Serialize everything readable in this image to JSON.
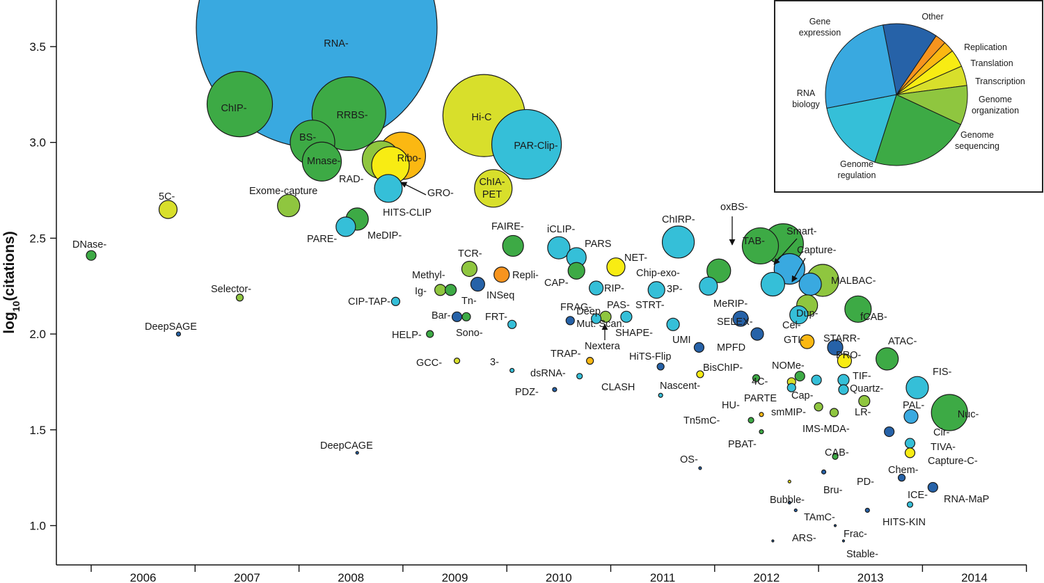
{
  "chart_data": {
    "type": "scatter",
    "ylabel": "log10(citations)",
    "xlim": [
      2005.5,
      2014.95
    ],
    "ylim": [
      0.8,
      3.73
    ],
    "x_ticks": [
      2006,
      2007,
      2008,
      2009,
      2010,
      2011,
      2012,
      2013,
      2014
    ],
    "y_ticks": [
      "1.0",
      "1.5",
      "2.0",
      "2.5",
      "3.0",
      "3.5"
    ],
    "colors": {
      "gene_expression": "#39a9e0",
      "rna_biology": "#35bfd8",
      "genome_regulation": "#3daa45",
      "genome_sequencing": "#8fc63f",
      "genome_organization": "#d8df2b",
      "transcription": "#f8ec13",
      "translation": "#fbb812",
      "replication": "#f7941e",
      "other": "#2662a8"
    },
    "points": [
      {
        "label": "DNase-",
        "x": 2005.5,
        "y": 2.41,
        "r": 7,
        "cat": "genome_regulation"
      },
      {
        "label": "DeepSAGE",
        "x": 2006.34,
        "y": 2.0,
        "r": 3,
        "cat": "other"
      },
      {
        "label": "5C-",
        "x": 2006.24,
        "y": 2.65,
        "r": 13,
        "cat": "genome_organization"
      },
      {
        "label": "Selector-",
        "x": 2006.93,
        "y": 2.19,
        "r": 5,
        "cat": "genome_sequencing"
      },
      {
        "label": "ChIP-",
        "x": 2006.93,
        "y": 3.2,
        "r": 47,
        "cat": "genome_regulation"
      },
      {
        "label": "RNA-",
        "x": 2007.67,
        "y": 3.6,
        "r": 173,
        "cat": "gene_expression"
      },
      {
        "label": "Exome-capture",
        "x": 2007.4,
        "y": 2.67,
        "r": 16,
        "cat": "genome_sequencing"
      },
      {
        "label": "BS-",
        "x": 2007.63,
        "y": 3.0,
        "r": 32,
        "cat": "genome_regulation"
      },
      {
        "label": "Mnase-",
        "x": 2007.72,
        "y": 2.9,
        "r": 28,
        "cat": "genome_regulation"
      },
      {
        "label": "RRBS-",
        "x": 2007.98,
        "y": 3.15,
        "r": 53,
        "cat": "genome_regulation"
      },
      {
        "label": "RAD-",
        "x": 2008.29,
        "y": 2.91,
        "r": 27,
        "cat": "genome_sequencing"
      },
      {
        "label": "GRO-",
        "x": 2008.38,
        "y": 2.88,
        "r": 27,
        "cat": "transcription"
      },
      {
        "label": "Ribo-",
        "x": 2008.49,
        "y": 2.93,
        "r": 34,
        "cat": "translation"
      },
      {
        "label": "HITS-CLIP",
        "x": 2008.36,
        "y": 2.76,
        "r": 20,
        "cat": "rna_biology"
      },
      {
        "label": "PARE-",
        "x": 2007.95,
        "y": 2.56,
        "r": 14,
        "cat": "rna_biology"
      },
      {
        "label": "MeDIP-",
        "x": 2008.06,
        "y": 2.6,
        "r": 16,
        "cat": "genome_regulation"
      },
      {
        "label": "Hi-C",
        "x": 2009.28,
        "y": 3.14,
        "r": 59,
        "cat": "genome_organization"
      },
      {
        "label": "PAR-Clip-",
        "x": 2009.69,
        "y": 2.99,
        "r": 50,
        "cat": "rna_biology"
      },
      {
        "label": "ChIA-PET",
        "x": 2009.37,
        "y": 2.76,
        "r": 27,
        "cat": "genome_organization"
      },
      {
        "label": "FAIRE-",
        "x": 2009.56,
        "y": 2.46,
        "r": 15,
        "cat": "genome_regulation"
      },
      {
        "label": "TCR-",
        "x": 2009.14,
        "y": 2.34,
        "r": 11,
        "cat": "genome_sequencing"
      },
      {
        "label": "Methyl-",
        "x": 2008.86,
        "y": 2.23,
        "r": 8,
        "cat": "genome_sequencing"
      },
      {
        "label": "Ig-",
        "x": 2008.96,
        "y": 2.23,
        "r": 8,
        "cat": "genome_regulation"
      },
      {
        "label": "Tn-",
        "x": 2009.22,
        "y": 2.26,
        "r": 10,
        "cat": "other"
      },
      {
        "label": "INSeq",
        "x": 2009.22,
        "y": 2.26,
        "r": 0,
        "cat": "other"
      },
      {
        "label": "Repli-",
        "x": 2009.45,
        "y": 2.31,
        "r": 11,
        "cat": "replication"
      },
      {
        "label": "CIP-TAP-",
        "x": 2008.43,
        "y": 2.17,
        "r": 6,
        "cat": "rna_biology"
      },
      {
        "label": "Bar-",
        "x": 2009.02,
        "y": 2.09,
        "r": 7,
        "cat": "other"
      },
      {
        "label": "Sono-",
        "x": 2009.11,
        "y": 2.09,
        "r": 6,
        "cat": "genome_regulation"
      },
      {
        "label": "HELP-",
        "x": 2008.76,
        "y": 2.0,
        "r": 5,
        "cat": "genome_regulation"
      },
      {
        "label": "FRT-",
        "x": 2009.55,
        "y": 2.05,
        "r": 6,
        "cat": "rna_biology"
      },
      {
        "label": "GCC-",
        "x": 2009.02,
        "y": 1.86,
        "r": 4,
        "cat": "genome_organization"
      },
      {
        "label": "3-",
        "x": 2009.55,
        "y": 1.81,
        "r": 3,
        "cat": "rna_biology"
      },
      {
        "label": "DeepCAGE",
        "x": 2008.06,
        "y": 1.38,
        "r": 2,
        "cat": "other"
      },
      {
        "label": "iCLIP-",
        "x": 2010.0,
        "y": 2.45,
        "r": 16,
        "cat": "rna_biology"
      },
      {
        "label": "PARS",
        "x": 2010.17,
        "y": 2.4,
        "r": 14,
        "cat": "rna_biology"
      },
      {
        "label": "CAP-",
        "x": 2010.17,
        "y": 2.33,
        "r": 12,
        "cat": "genome_regulation"
      },
      {
        "label": "RIP-",
        "x": 2010.36,
        "y": 2.24,
        "r": 10,
        "cat": "rna_biology"
      },
      {
        "label": "NET-",
        "x": 2010.55,
        "y": 2.35,
        "r": 13,
        "cat": "transcription"
      },
      {
        "label": "Deep Mut. Scan.",
        "x": 2010.11,
        "y": 2.07,
        "r": 6,
        "cat": "other"
      },
      {
        "label": "FRAG-",
        "x": 2010.36,
        "y": 2.08,
        "r": 7,
        "cat": "rna_biology"
      },
      {
        "label": "Nextera",
        "x": 2010.45,
        "y": 2.09,
        "r": 8,
        "cat": "genome_sequencing"
      },
      {
        "label": "PAS-",
        "x": 2010.65,
        "y": 2.09,
        "r": 8,
        "cat": "rna_biology"
      },
      {
        "label": "TRAP-",
        "x": 2010.3,
        "y": 1.86,
        "r": 5,
        "cat": "translation"
      },
      {
        "label": "dsRNA-",
        "x": 2010.2,
        "y": 1.78,
        "r": 4,
        "cat": "rna_biology"
      },
      {
        "label": "PDZ-",
        "x": 2009.96,
        "y": 1.71,
        "r": 3,
        "cat": "other"
      },
      {
        "label": "ChIRP-",
        "x": 2011.15,
        "y": 2.48,
        "r": 23,
        "cat": "rna_biology"
      },
      {
        "label": "Chip-exo-",
        "x": 2011.54,
        "y": 2.33,
        "r": 17,
        "cat": "genome_regulation"
      },
      {
        "label": "STRT-",
        "x": 2010.94,
        "y": 2.23,
        "r": 12,
        "cat": "rna_biology"
      },
      {
        "label": "3P-",
        "x": 2011.44,
        "y": 2.25,
        "r": 13,
        "cat": "rna_biology"
      },
      {
        "label": "SHAPE-",
        "x": 2011.1,
        "y": 2.05,
        "r": 9,
        "cat": "rna_biology"
      },
      {
        "label": "UMI",
        "x": 2011.35,
        "y": 1.93,
        "r": 7,
        "cat": "other"
      },
      {
        "label": "HiTS-Flip",
        "x": 2010.98,
        "y": 1.83,
        "r": 5,
        "cat": "other"
      },
      {
        "label": "CLASH",
        "x": 2010.98,
        "y": 1.68,
        "r": 3,
        "cat": "rna_biology"
      },
      {
        "label": "Nascent-",
        "x": 2011.36,
        "y": 1.79,
        "r": 5,
        "cat": "transcription"
      },
      {
        "label": "oxBS-",
        "x": 2011.94,
        "y": 2.46,
        "r": 26,
        "cat": "genome_regulation"
      },
      {
        "label": "TAB-",
        "x": 2012.16,
        "y": 2.47,
        "r": 29,
        "cat": "genome_regulation"
      },
      {
        "label": "Smart-",
        "x": 2012.22,
        "y": 2.34,
        "r": 22,
        "cat": "gene_expression"
      },
      {
        "label": "MeRIP-",
        "x": 2012.06,
        "y": 2.26,
        "r": 17,
        "cat": "rna_biology"
      },
      {
        "label": "Capture-",
        "x": 2012.42,
        "y": 2.26,
        "r": 16,
        "cat": "gene_expression"
      },
      {
        "label": "MALBAC-",
        "x": 2012.54,
        "y": 2.28,
        "r": 23,
        "cat": "genome_sequencing"
      },
      {
        "label": "Dup-",
        "x": 2012.39,
        "y": 2.15,
        "r": 15,
        "cat": "genome_sequencing"
      },
      {
        "label": "fCAB-",
        "x": 2012.88,
        "y": 2.13,
        "r": 19,
        "cat": "genome_regulation"
      },
      {
        "label": "SELEX-",
        "x": 2011.75,
        "y": 2.08,
        "r": 11,
        "cat": "other"
      },
      {
        "label": "MPFD",
        "x": 2011.91,
        "y": 2.0,
        "r": 9,
        "cat": "other"
      },
      {
        "label": "Cel-",
        "x": 2012.31,
        "y": 2.1,
        "r": 13,
        "cat": "rna_biology"
      },
      {
        "label": "GTI-",
        "x": 2012.39,
        "y": 1.96,
        "r": 10,
        "cat": "translation"
      },
      {
        "label": "STARR-",
        "x": 2012.66,
        "y": 1.93,
        "r": 11,
        "cat": "other"
      },
      {
        "label": "PRO-",
        "x": 2012.75,
        "y": 1.86,
        "r": 10,
        "cat": "transcription"
      },
      {
        "label": "ATAC-",
        "x": 2013.16,
        "y": 1.87,
        "r": 16,
        "cat": "genome_regulation"
      },
      {
        "label": "BisChIP-",
        "x": 2011.9,
        "y": 1.77,
        "r": 5,
        "cat": "genome_regulation"
      },
      {
        "label": "NOMe-",
        "x": 2012.32,
        "y": 1.78,
        "r": 7,
        "cat": "genome_regulation"
      },
      {
        "label": "4C-",
        "x": 2012.24,
        "y": 1.75,
        "r": 6,
        "cat": "genome_organization"
      },
      {
        "label": "PARTE",
        "x": 2012.24,
        "y": 1.72,
        "r": 6,
        "cat": "rna_biology"
      },
      {
        "label": "Cap-",
        "x": 2012.48,
        "y": 1.76,
        "r": 7,
        "cat": "rna_biology"
      },
      {
        "label": "TIF-",
        "x": 2012.74,
        "y": 1.76,
        "r": 8,
        "cat": "rna_biology"
      },
      {
        "label": "Quartz-",
        "x": 2012.74,
        "y": 1.71,
        "r": 7,
        "cat": "rna_biology"
      },
      {
        "label": "FIS-",
        "x": 2013.45,
        "y": 1.72,
        "r": 16,
        "cat": "rna_biology"
      },
      {
        "label": "HU-",
        "x": 2011.95,
        "y": 1.58,
        "r": 3,
        "cat": "translation"
      },
      {
        "label": "Tn5mC-",
        "x": 2011.85,
        "y": 1.55,
        "r": 4,
        "cat": "genome_regulation"
      },
      {
        "label": "PBAT-",
        "x": 2011.95,
        "y": 1.49,
        "r": 3,
        "cat": "genome_regulation"
      },
      {
        "label": "smMIP-",
        "x": 2012.5,
        "y": 1.62,
        "r": 6,
        "cat": "genome_sequencing"
      },
      {
        "label": "LR-",
        "x": 2012.65,
        "y": 1.59,
        "r": 6,
        "cat": "genome_sequencing"
      },
      {
        "label": "Nuc-",
        "x": 2013.76,
        "y": 1.59,
        "r": 26,
        "cat": "genome_regulation"
      },
      {
        "label": "PAL-",
        "x": 2013.39,
        "y": 1.57,
        "r": 10,
        "cat": "gene_expression"
      },
      {
        "label": "IMS-MDA-",
        "x": 2012.94,
        "y": 1.65,
        "r": 8,
        "cat": "genome_sequencing"
      },
      {
        "label": "Cir-",
        "x": 2013.18,
        "y": 1.49,
        "r": 7,
        "cat": "other"
      },
      {
        "label": "TIVA-",
        "x": 2013.38,
        "y": 1.43,
        "r": 7,
        "cat": "rna_biology"
      },
      {
        "label": "Capture-C-",
        "x": 2013.38,
        "y": 1.38,
        "r": 7,
        "cat": "transcription"
      },
      {
        "label": "CAB-",
        "x": 2012.66,
        "y": 1.36,
        "r": 4,
        "cat": "genome_regulation"
      },
      {
        "label": "OS-",
        "x": 2011.36,
        "y": 1.3,
        "r": 2,
        "cat": "other"
      },
      {
        "label": "Chem-",
        "x": 2013.3,
        "y": 1.25,
        "r": 5,
        "cat": "other"
      },
      {
        "label": "RNA-MaP",
        "x": 2013.6,
        "y": 1.2,
        "r": 7,
        "cat": "other"
      },
      {
        "label": "PD-",
        "x": 2012.55,
        "y": 1.28,
        "r": 3,
        "cat": "other"
      },
      {
        "label": "Bubble-",
        "x": 2012.22,
        "y": 1.12,
        "r": 2,
        "cat": "other"
      },
      {
        "label": "Bru-",
        "x": 2012.22,
        "y": 1.23,
        "r": 2,
        "cat": "transcription"
      },
      {
        "label": "ICE-",
        "x": 2013.38,
        "y": 1.11,
        "r": 4,
        "cat": "rna_biology"
      },
      {
        "label": "HITS-KIN",
        "x": 2012.97,
        "y": 1.08,
        "r": 3,
        "cat": "other"
      },
      {
        "label": "TAmC-",
        "x": 2012.28,
        "y": 1.08,
        "r": 2,
        "cat": "other"
      },
      {
        "label": "Frac-",
        "x": 2012.66,
        "y": 1.0,
        "r": 1.5,
        "cat": "other"
      },
      {
        "label": "ARS-",
        "x": 2012.06,
        "y": 0.92,
        "r": 1.5,
        "cat": "other"
      },
      {
        "label": "Stable-",
        "x": 2012.74,
        "y": 0.92,
        "r": 1.5,
        "cat": "other"
      }
    ],
    "inset_pie": {
      "categories": [
        "Other",
        "Replication",
        "Translation",
        "Transcription",
        "Genome organization",
        "Genome sequencing",
        "Genome regulation",
        "RNA biology",
        "Gene expression"
      ],
      "values": [
        12.5,
        2.5,
        2.5,
        4,
        4.5,
        9,
        23,
        17,
        25
      ],
      "label_lines": [
        [
          "Other"
        ],
        [
          "Replication"
        ],
        [
          "Translation"
        ],
        [
          "Transcription"
        ],
        [
          "Genome",
          "organization"
        ],
        [
          "Genome",
          "sequencing"
        ],
        [
          "Genome",
          "regulation"
        ],
        [
          "RNA",
          "biology"
        ],
        [
          "Gene",
          "expression"
        ]
      ],
      "colors": [
        "#2662a8",
        "#f7941e",
        "#fbb812",
        "#f8ec13",
        "#d8df2b",
        "#8fc63f",
        "#3daa45",
        "#35bfd8",
        "#39a9e0"
      ]
    }
  }
}
